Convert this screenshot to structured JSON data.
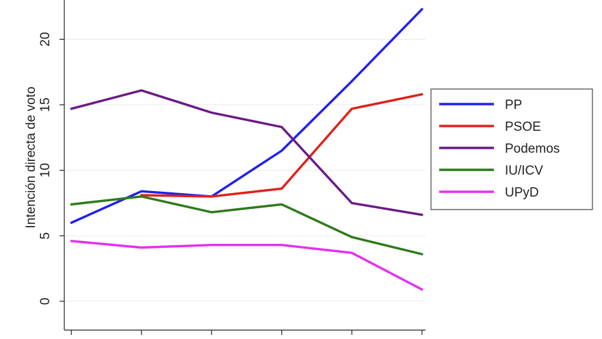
{
  "chart_data": {
    "type": "line",
    "ylabel": "Intención directa de voto",
    "ylim": [
      -2.2,
      23
    ],
    "yticks": [
      0,
      5,
      10,
      15,
      20
    ],
    "x": [
      1,
      2,
      3,
      4,
      5,
      6
    ],
    "xlim": [
      0.9,
      6.05
    ],
    "grid": true,
    "legend_position": "right",
    "series": [
      {
        "name": "PP",
        "color": "#1f1ff0",
        "values": [
          6.0,
          8.4,
          8.0,
          11.5,
          16.8,
          22.3
        ]
      },
      {
        "name": "PSOE",
        "color": "#e0201b",
        "values": [
          null,
          8.1,
          8.0,
          8.6,
          14.7,
          15.8
        ]
      },
      {
        "name": "Podemos",
        "color": "#6a1a86",
        "values": [
          14.7,
          16.1,
          14.4,
          13.3,
          7.5,
          6.6
        ]
      },
      {
        "name": "IU/ICV",
        "color": "#2f7a1c",
        "values": [
          7.4,
          8.0,
          6.8,
          7.4,
          4.9,
          3.6
        ]
      },
      {
        "name": "UPyD",
        "color": "#e62ef0",
        "values": [
          4.6,
          4.1,
          4.3,
          4.3,
          3.7,
          0.9
        ]
      }
    ]
  }
}
